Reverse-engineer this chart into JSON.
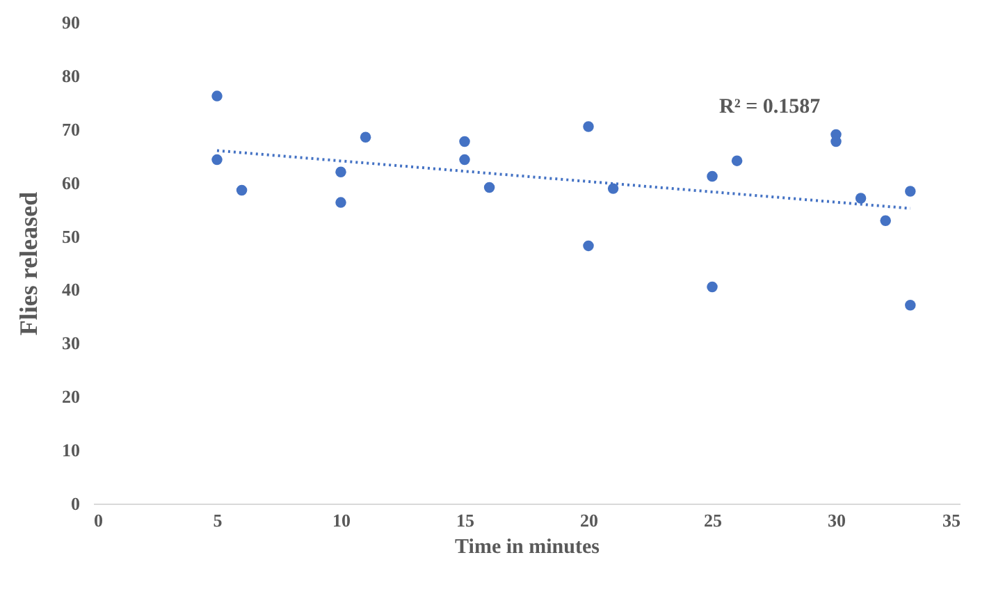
{
  "chart_data": {
    "type": "scatter",
    "xlabel": "Time in minutes",
    "ylabel": "Flies released",
    "annotations": [
      "R² = 0.1587"
    ],
    "xlim": [
      0,
      35
    ],
    "xticks": [
      0,
      5,
      10,
      15,
      20,
      25,
      30,
      35
    ],
    "ylim": [
      0,
      90
    ],
    "yticks": [
      0,
      10,
      20,
      30,
      40,
      50,
      60,
      70,
      80,
      90
    ],
    "grid": false,
    "series": [
      {
        "type": "scatter",
        "color": "#4472c4",
        "marker": "circle",
        "x": [
          5,
          5,
          6,
          10,
          10,
          11,
          15,
          15,
          16,
          20,
          20,
          21,
          25,
          25,
          26,
          30,
          30,
          31,
          32,
          33,
          33
        ],
        "values": [
          76.2,
          64.3,
          58.6,
          62,
          56.3,
          68.5,
          67.7,
          64.3,
          59.1,
          70.5,
          48.2,
          58.9,
          61.2,
          40.5,
          64.1,
          69,
          67.7,
          57.1,
          52.9,
          58.4,
          37.1
        ]
      },
      {
        "type": "line",
        "color": "#4472c4",
        "line_style": "dotted",
        "x": [
          5,
          33
        ],
        "values": [
          66,
          55.2
        ]
      }
    ]
  }
}
